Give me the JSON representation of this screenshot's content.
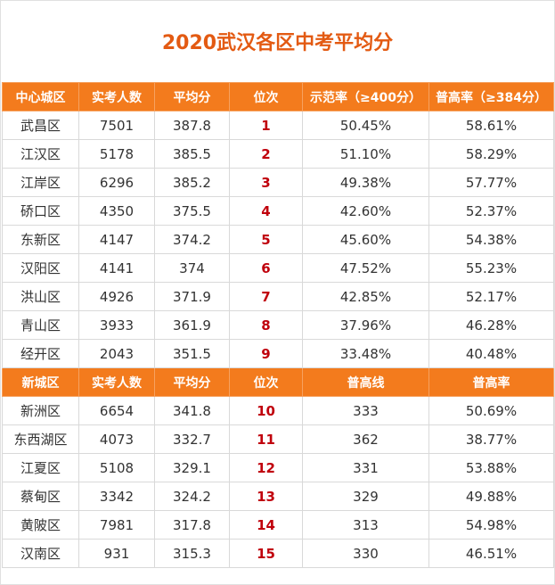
{
  "title": "2020武汉各区中考平均分",
  "section1": {
    "headers": [
      "中心城区",
      "实考人数",
      "平均分",
      "位次",
      "示范率（≥400分）",
      "普高率（≥384分）"
    ],
    "rows": [
      [
        "武昌区",
        "7501",
        "387.8",
        "1",
        "50.45%",
        "58.61%"
      ],
      [
        "江汉区",
        "5178",
        "385.5",
        "2",
        "51.10%",
        "58.29%"
      ],
      [
        "江岸区",
        "6296",
        "385.2",
        "3",
        "49.38%",
        "57.77%"
      ],
      [
        "硚口区",
        "4350",
        "375.5",
        "4",
        "42.60%",
        "52.37%"
      ],
      [
        "东新区",
        "4147",
        "374.2",
        "5",
        "45.60%",
        "54.38%"
      ],
      [
        "汉阳区",
        "4141",
        "374",
        "6",
        "47.52%",
        "55.23%"
      ],
      [
        "洪山区",
        "4926",
        "371.9",
        "7",
        "42.85%",
        "52.17%"
      ],
      [
        "青山区",
        "3933",
        "361.9",
        "8",
        "37.96%",
        "46.28%"
      ],
      [
        "经开区",
        "2043",
        "351.5",
        "9",
        "33.48%",
        "40.48%"
      ]
    ]
  },
  "section2": {
    "headers": [
      "新城区",
      "实考人数",
      "平均分",
      "位次",
      "普高线",
      "普高率"
    ],
    "rows": [
      [
        "新洲区",
        "6654",
        "341.8",
        "10",
        "333",
        "50.69%"
      ],
      [
        "东西湖区",
        "4073",
        "332.7",
        "11",
        "362",
        "38.77%"
      ],
      [
        "江夏区",
        "5108",
        "329.1",
        "12",
        "331",
        "53.88%"
      ],
      [
        "蔡甸区",
        "3342",
        "324.2",
        "13",
        "329",
        "49.88%"
      ],
      [
        "黄陂区",
        "7981",
        "317.8",
        "14",
        "313",
        "54.98%"
      ],
      [
        "汉南区",
        "931",
        "315.3",
        "15",
        "330",
        "46.51%"
      ]
    ]
  },
  "colors": {
    "title": "#e35a12",
    "header_bg": "#f37b1d",
    "rank": "#c0000c"
  }
}
